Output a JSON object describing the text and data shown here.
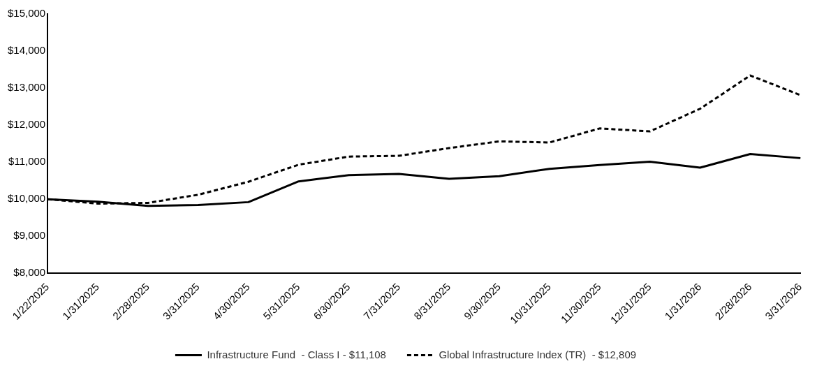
{
  "chart_data": {
    "type": "line",
    "categories": [
      "1/22/2025",
      "1/31/2025",
      "2/28/2025",
      "3/31/2025",
      "4/30/2025",
      "5/31/2025",
      "6/30/2025",
      "7/31/2025",
      "8/31/2025",
      "9/30/2025",
      "10/31/2025",
      "11/30/2025",
      "12/31/2025",
      "1/31/2026",
      "2/28/2026",
      "3/31/2026"
    ],
    "series": [
      {
        "name": "Infrastructure Fund  - Class I - $11,108",
        "color": "#000000",
        "line_style": "solid",
        "values": [
          10000,
          9930,
          9820,
          9840,
          9920,
          10480,
          10650,
          10680,
          10550,
          10620,
          10820,
          10920,
          11010,
          10850,
          11220,
          11108
        ]
      },
      {
        "name": "Global Infrastructure Index (TR)  - $12,809",
        "color": "#000000",
        "line_style": "dashed",
        "values": [
          10000,
          9880,
          9900,
          10120,
          10470,
          10930,
          11150,
          11170,
          11380,
          11560,
          11530,
          11910,
          11830,
          12440,
          13340,
          12809
        ]
      }
    ],
    "ylim": [
      8000,
      15000
    ],
    "yticks": [
      {
        "value": 8000,
        "label": "$8,000"
      },
      {
        "value": 9000,
        "label": "$9,000"
      },
      {
        "value": 10000,
        "label": "$10,000"
      },
      {
        "value": 11000,
        "label": "$11,000"
      },
      {
        "value": 12000,
        "label": "$12,000"
      },
      {
        "value": 13000,
        "label": "$13,000"
      },
      {
        "value": 14000,
        "label": "$14,000"
      },
      {
        "value": 15000,
        "label": "$15,000"
      }
    ],
    "grid": false,
    "legend": "bottom",
    "marker": "none"
  }
}
